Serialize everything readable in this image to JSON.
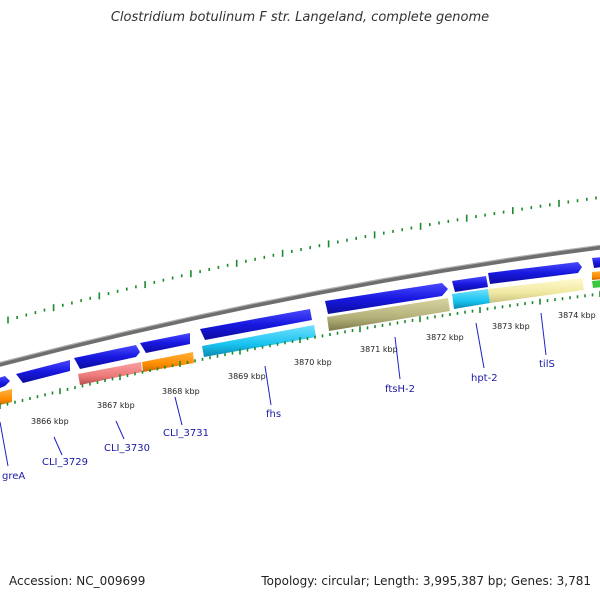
{
  "title": "Clostridium botulinum F str. Langeland, complete genome",
  "footer": {
    "accession": "Accession: NC_009699",
    "info": "Topology: circular; Length: 3,995,387 bp; Genes: 3,781"
  },
  "colors": {
    "backbone": "#8c8c8c",
    "forward_gene": "#1818e0",
    "tick": "#1a8a2a",
    "label_line": "#2020c8",
    "label_text": "#1a1aa6"
  },
  "scale": {
    "ticks": [
      {
        "label": "3866 kbp",
        "kbp": 3866
      },
      {
        "label": "3867 kbp",
        "kbp": 3867
      },
      {
        "label": "3868 kbp",
        "kbp": 3868
      },
      {
        "label": "3869 kbp",
        "kbp": 3869
      },
      {
        "label": "3870 kbp",
        "kbp": 3870
      },
      {
        "label": "3871 kbp",
        "kbp": 3871
      },
      {
        "label": "3872 kbp",
        "kbp": 3872
      },
      {
        "label": "3873 kbp",
        "kbp": 3873
      },
      {
        "label": "3874 kbp",
        "kbp": 3874
      }
    ]
  },
  "genes": [
    {
      "name": "greA",
      "color": "#ff8c00"
    },
    {
      "name": "CLI_3729",
      "color": "#1818e0"
    },
    {
      "name": "CLI_3730",
      "color": "#ee7a7a"
    },
    {
      "name": "CLI_3731",
      "color": "#ff8c00"
    },
    {
      "name": "fhs",
      "color": "#19c3f0"
    },
    {
      "name": "ftsH-2",
      "color": "#b4b07a"
    },
    {
      "name": "hpt-2",
      "color": "#19c3f0"
    },
    {
      "name": "tilS",
      "color": "#f0e8a0"
    }
  ]
}
